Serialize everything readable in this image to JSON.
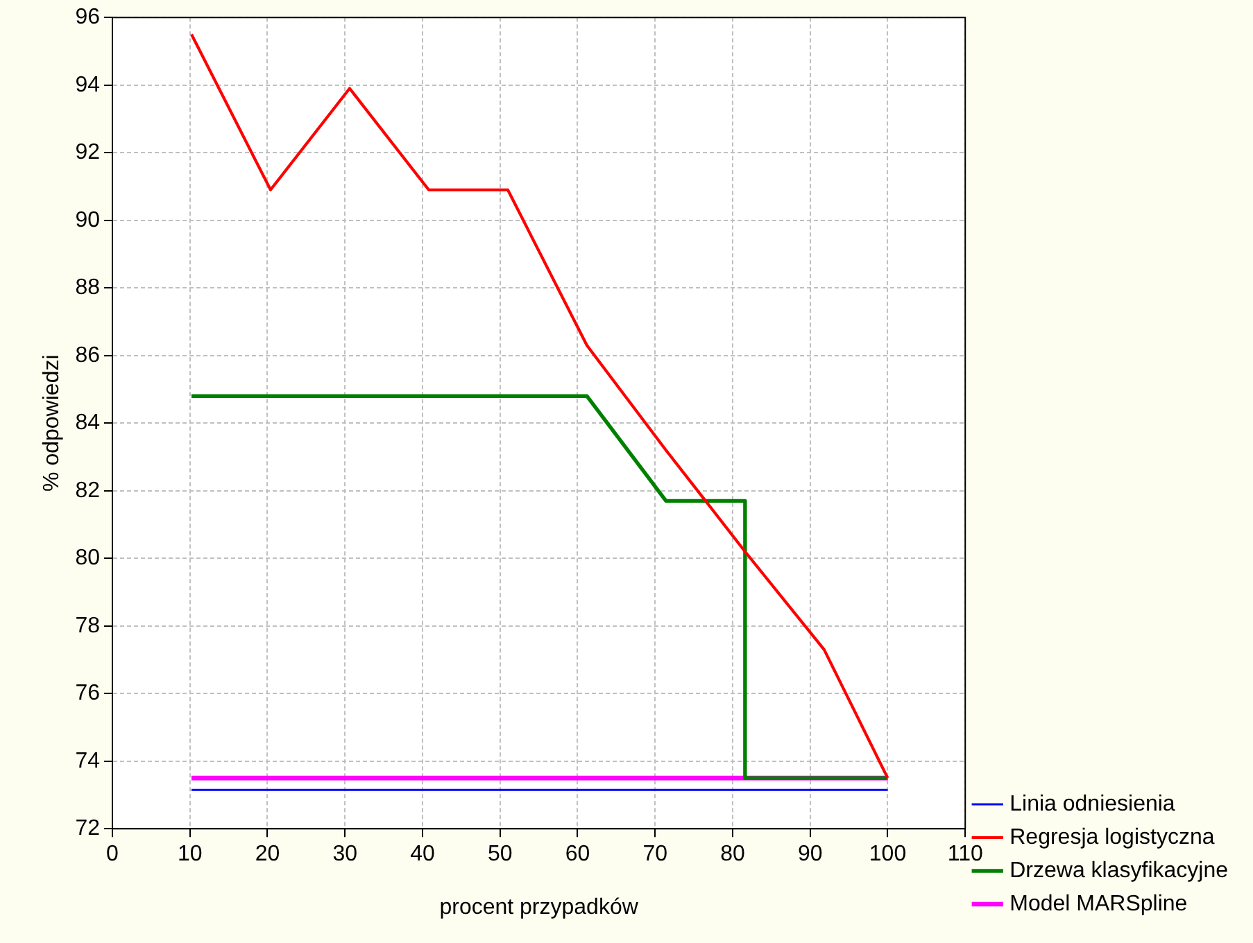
{
  "chart_data": {
    "type": "line",
    "xlabel": "procent przypadków",
    "ylabel": "% odpowiedzi",
    "xlim": [
      0,
      110
    ],
    "xticks": [
      0,
      10,
      20,
      30,
      40,
      50,
      60,
      70,
      80,
      90,
      100,
      110
    ],
    "ylim": [
      72,
      96
    ],
    "yticks": [
      72,
      74,
      76,
      78,
      80,
      82,
      84,
      86,
      88,
      90,
      92,
      94,
      96
    ],
    "grid": true,
    "legend": "bottom right",
    "marker": "none",
    "line_style": "solid",
    "series": [
      {
        "name": "Linia odniesienia",
        "color": "#0000ff",
        "x": [
          10.2,
          100
        ],
        "values": [
          73.15,
          73.15
        ]
      },
      {
        "name": "Regresja logistyczna",
        "color": "#ff0000",
        "x": [
          10.2,
          20.4,
          30.6,
          40.8,
          51.0,
          61.2,
          71.4,
          81.6,
          91.8,
          100
        ],
        "values": [
          95.5,
          90.9,
          93.9,
          90.9,
          90.9,
          86.3,
          83.2,
          80.2,
          77.3,
          73.5
        ]
      },
      {
        "name": "Drzewa klasyfikacyjne",
        "color": "#008000",
        "x": [
          10.2,
          61.2,
          71.4,
          81.6,
          81.6,
          100
        ],
        "values": [
          84.8,
          84.8,
          81.7,
          81.7,
          73.5,
          73.5
        ]
      },
      {
        "name": "Model MARSpline",
        "color": "#ff00ff",
        "x": [
          10.2,
          100
        ],
        "values": [
          73.5,
          73.5
        ]
      }
    ]
  }
}
